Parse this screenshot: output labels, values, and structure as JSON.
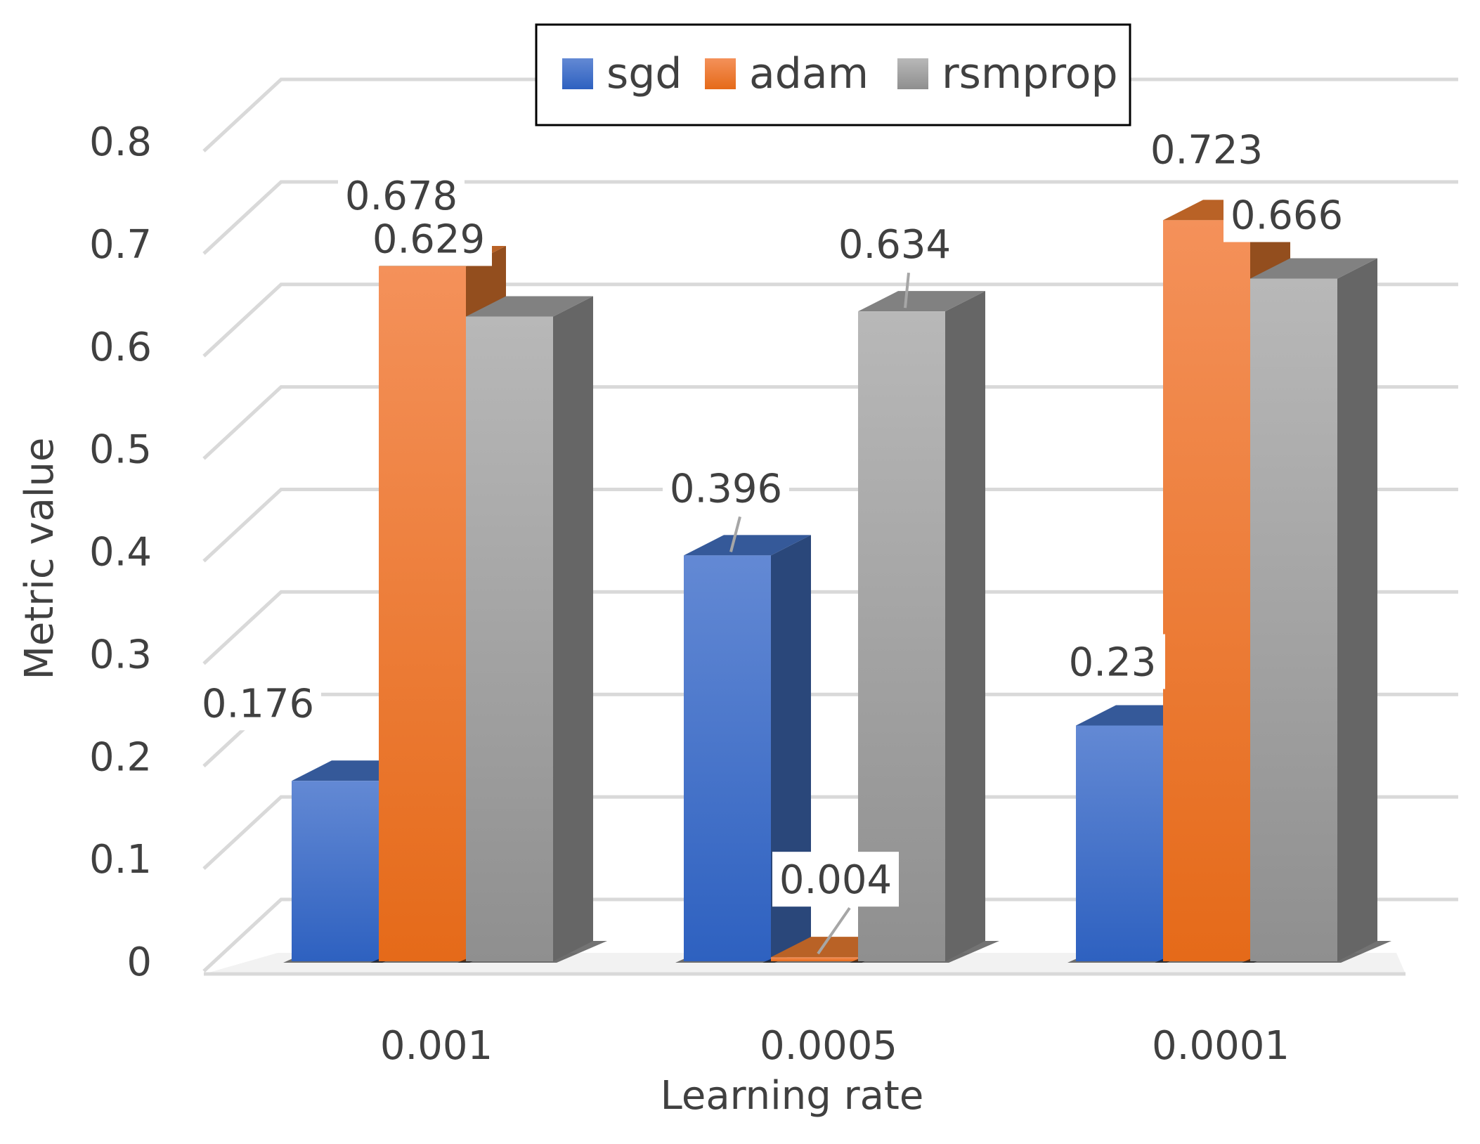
{
  "chart_data": {
    "type": "bar",
    "title": "",
    "xlabel": "Learning rate",
    "ylabel": "Metric value",
    "categories": [
      "0.001",
      "0.0005",
      "0.0001"
    ],
    "ylim": [
      0,
      0.8
    ],
    "yticks": [
      0,
      0.1,
      0.2,
      0.3,
      0.4,
      0.5,
      0.6,
      0.7,
      0.8
    ],
    "ytick_labels": [
      "0",
      "0.1",
      "0.2",
      "0.3",
      "0.4",
      "0.5",
      "0.6",
      "0.7",
      "0.8"
    ],
    "grid": true,
    "legend_position": "top-center",
    "series": [
      {
        "name": "sgd",
        "values": [
          0.176,
          0.396,
          0.23
        ],
        "labels": [
          "0.176",
          "0.396",
          "0.23"
        ],
        "color": "#4472C4"
      },
      {
        "name": "adam",
        "values": [
          0.678,
          0.004,
          0.723
        ],
        "labels": [
          "0.678",
          "0.004",
          "0.723"
        ],
        "color": "#ED7D31"
      },
      {
        "name": "rsmprop",
        "values": [
          0.629,
          0.634,
          0.666
        ],
        "labels": [
          "0.629",
          "0.634",
          "0.666"
        ],
        "color": "#A5A5A5"
      }
    ]
  }
}
